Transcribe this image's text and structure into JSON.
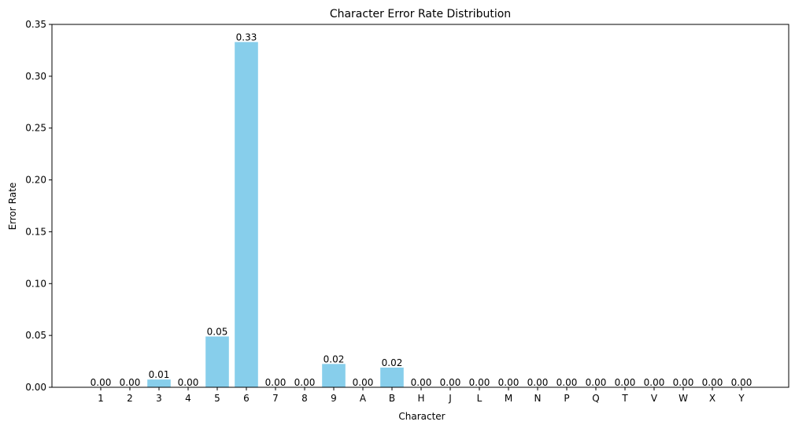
{
  "chart_data": {
    "type": "bar",
    "title": "Character Error Rate Distribution",
    "xlabel": "Character",
    "ylabel": "Error Rate",
    "categories": [
      "1",
      "2",
      "3",
      "4",
      "5",
      "6",
      "7",
      "8",
      "9",
      "A",
      "B",
      "H",
      "J",
      "L",
      "M",
      "N",
      "P",
      "Q",
      "T",
      "V",
      "W",
      "X",
      "Y"
    ],
    "values": [
      0.0,
      0.0,
      0.0075,
      0.0,
      0.049,
      0.333,
      0.0,
      0.0,
      0.0225,
      0.0,
      0.019,
      0.0,
      0.0,
      0.0,
      0.0,
      0.0,
      0.0,
      0.0,
      0.0,
      0.0,
      0.0,
      0.0,
      0.0
    ],
    "data_labels": [
      "0.00",
      "0.00",
      "0.01",
      "0.00",
      "0.05",
      "0.33",
      "0.00",
      "0.00",
      "0.02",
      "0.00",
      "0.02",
      "0.00",
      "0.00",
      "0.00",
      "0.00",
      "0.00",
      "0.00",
      "0.00",
      "0.00",
      "0.00",
      "0.00",
      "0.00",
      "0.00"
    ],
    "ylim": [
      0,
      0.35
    ],
    "yticks": [
      0.0,
      0.05,
      0.1,
      0.15,
      0.2,
      0.25,
      0.3,
      0.35
    ],
    "ytick_labels": [
      "0.00",
      "0.05",
      "0.10",
      "0.15",
      "0.20",
      "0.25",
      "0.30",
      "0.35"
    ],
    "grid": false,
    "legend": "none",
    "bar_color": "#87ceeb",
    "axes_color": "#000000"
  }
}
